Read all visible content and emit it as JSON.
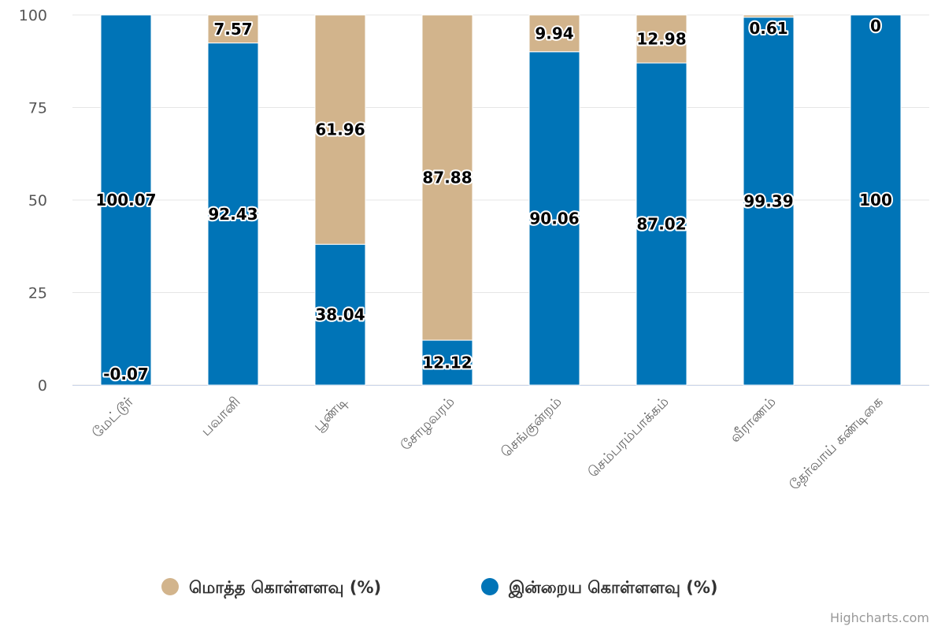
{
  "chart_data": {
    "type": "bar",
    "stacked": true,
    "categories": [
      "மேட்டூர்",
      "பவானி",
      "பூண்டி",
      "சோழவரம்",
      "செங்குன்றம்",
      "செம்பரம்பாக்கம்",
      "வீராணம்",
      "தேர்வாய் கண்டிகை"
    ],
    "series": [
      {
        "name": "மொத்த கொள்ளளவு (%)",
        "color": "#d2b48c",
        "values": [
          -0.07,
          7.57,
          61.96,
          87.88,
          9.94,
          12.98,
          0.61,
          0
        ]
      },
      {
        "name": "இன்றைய கொள்ளளவு (%)",
        "color": "#0074b7",
        "values": [
          100.07,
          92.43,
          38.04,
          12.12,
          90.06,
          87.02,
          99.39,
          100
        ]
      }
    ],
    "yticks": [
      0,
      25,
      50,
      75,
      100
    ],
    "ylim": [
      0,
      100
    ],
    "grid": true,
    "legend_position": "bottom-center",
    "credits": "Highcharts.com"
  }
}
